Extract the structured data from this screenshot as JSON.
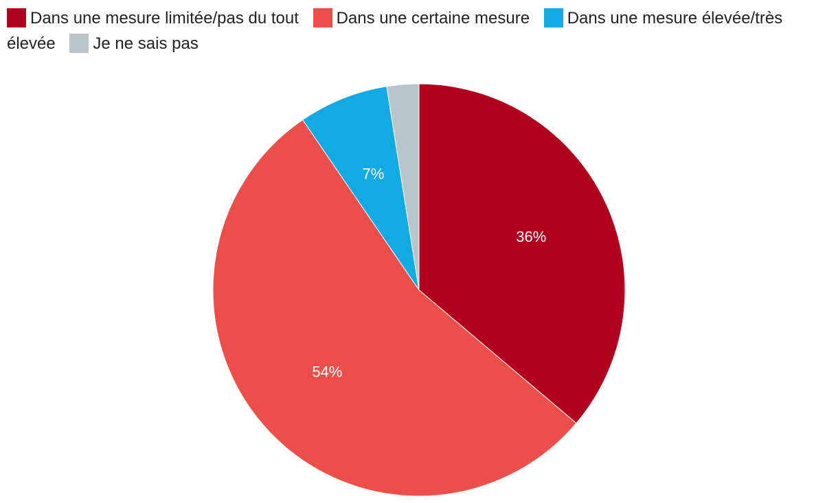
{
  "chart_data": {
    "type": "pie",
    "title": "",
    "legend_position": "top-left",
    "slices": [
      {
        "name": "Dans une mesure limitée/pas du tout",
        "value": 36,
        "label": "36%",
        "color": "#b0001e"
      },
      {
        "name": "Dans une certaine mesure",
        "value": 54,
        "label": "54%",
        "color": "#ec4f4a"
      },
      {
        "name": "Dans une mesure élevée/très élevée",
        "value": 7,
        "label": "7%",
        "color": "#12aae3"
      },
      {
        "name": "Je ne sais pas",
        "value": 2.5,
        "label": "",
        "color": "#b8c5cb"
      }
    ]
  }
}
